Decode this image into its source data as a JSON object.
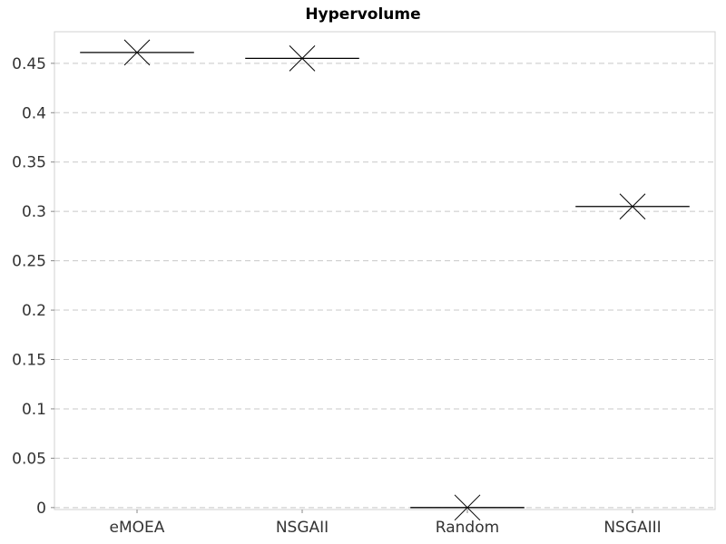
{
  "chart_data": {
    "type": "box",
    "title": "Hypervolume",
    "xlabel": "",
    "ylabel": "",
    "categories": [
      "eMOEA",
      "NSGAII",
      "Random",
      "NSGAIII"
    ],
    "values": [
      0.461,
      0.455,
      0.0,
      0.305
    ],
    "ylim": [
      -0.002,
      0.482
    ],
    "yticks": [
      0,
      0.05,
      0.1,
      0.15,
      0.2,
      0.25,
      0.3,
      0.35,
      0.4,
      0.45
    ],
    "ytick_labels": [
      "0",
      "0.05",
      "0.1",
      "0.15",
      "0.2",
      "0.25",
      "0.3",
      "0.35",
      "0.4",
      "0.45"
    ],
    "grid": true,
    "legend": "none",
    "colors": {
      "mark": "#000000",
      "grid": "#c8c8c8",
      "frame": "#d0d0d0",
      "text": "#333333"
    }
  }
}
